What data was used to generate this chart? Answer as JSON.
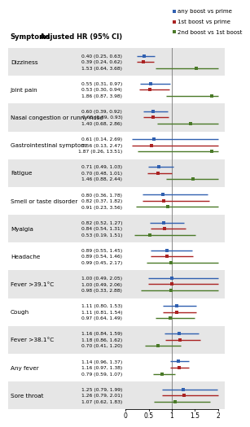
{
  "symptoms": [
    "Dizziness",
    "Joint pain",
    "Nasal congestion or runny nose",
    "Gastrointestinal symptom",
    "Fatigue",
    "Smell or taste disorder",
    "Myalgia",
    "Headache",
    "Fever >39.1°C",
    "Cough",
    "Fever >38.1°C",
    "Any fever",
    "Sore throat"
  ],
  "data": [
    {
      "label": "0.40 (0.25, 0.63)",
      "hr": 0.4,
      "lo": 0.25,
      "hi": 0.63,
      "color": "#3060b0"
    },
    {
      "label": "0.39 (0.24, 0.62)",
      "hr": 0.39,
      "lo": 0.24,
      "hi": 0.62,
      "color": "#aa2222"
    },
    {
      "label": "1.53 (0.64, 3.68)",
      "hr": 1.53,
      "lo": 0.64,
      "hi": 3.68,
      "color": "#4a7a28"
    },
    {
      "label": "0.55 (0.31, 0.97)",
      "hr": 0.55,
      "lo": 0.31,
      "hi": 0.97,
      "color": "#3060b0"
    },
    {
      "label": "0.53 (0.30, 0.94)",
      "hr": 0.53,
      "lo": 0.3,
      "hi": 0.94,
      "color": "#aa2222"
    },
    {
      "label": "1.86 (0.87, 3.98)",
      "hr": 1.86,
      "lo": 0.87,
      "hi": 3.98,
      "color": "#4a7a28"
    },
    {
      "label": "0.60 (0.39, 0.92)",
      "hr": 0.6,
      "lo": 0.39,
      "hi": 0.92,
      "color": "#3060b0"
    },
    {
      "label": "0.60 (0.39, 0.93)",
      "hr": 0.6,
      "lo": 0.39,
      "hi": 0.93,
      "color": "#aa2222"
    },
    {
      "label": "1.40 (0.68, 2.86)",
      "hr": 1.4,
      "lo": 0.68,
      "hi": 2.86,
      "color": "#4a7a28"
    },
    {
      "label": "0.61 (0.14, 2.69)",
      "hr": 0.61,
      "lo": 0.14,
      "hi": 2.69,
      "color": "#3060b0"
    },
    {
      "label": "0.56 (0.13, 2.47)",
      "hr": 0.56,
      "lo": 0.13,
      "hi": 2.47,
      "color": "#aa2222"
    },
    {
      "label": "1.87 (0.26, 13.51)",
      "hr": 1.87,
      "lo": 0.26,
      "hi": 13.51,
      "color": "#4a7a28"
    },
    {
      "label": "0.71 (0.49, 1.03)",
      "hr": 0.71,
      "lo": 0.49,
      "hi": 1.03,
      "color": "#3060b0"
    },
    {
      "label": "0.70 (0.48, 1.01)",
      "hr": 0.7,
      "lo": 0.48,
      "hi": 1.01,
      "color": "#aa2222"
    },
    {
      "label": "1.46 (0.88, 2.44)",
      "hr": 1.46,
      "lo": 0.88,
      "hi": 2.44,
      "color": "#4a7a28"
    },
    {
      "label": "0.80 (0.36, 1.78)",
      "hr": 0.8,
      "lo": 0.36,
      "hi": 1.78,
      "color": "#3060b0"
    },
    {
      "label": "0.82 (0.37, 1.82)",
      "hr": 0.82,
      "lo": 0.37,
      "hi": 1.82,
      "color": "#aa2222"
    },
    {
      "label": "0.91 (0.23, 3.56)",
      "hr": 0.91,
      "lo": 0.23,
      "hi": 3.56,
      "color": "#4a7a28"
    },
    {
      "label": "0.82 (0.52, 1.27)",
      "hr": 0.82,
      "lo": 0.52,
      "hi": 1.27,
      "color": "#3060b0"
    },
    {
      "label": "0.84 (0.54, 1.31)",
      "hr": 0.84,
      "lo": 0.54,
      "hi": 1.31,
      "color": "#aa2222"
    },
    {
      "label": "0.53 (0.19, 1.51)",
      "hr": 0.53,
      "lo": 0.19,
      "hi": 1.51,
      "color": "#4a7a28"
    },
    {
      "label": "0.89 (0.55, 1.45)",
      "hr": 0.89,
      "lo": 0.55,
      "hi": 1.45,
      "color": "#3060b0"
    },
    {
      "label": "0.89 (0.54, 1.46)",
      "hr": 0.89,
      "lo": 0.54,
      "hi": 1.46,
      "color": "#aa2222"
    },
    {
      "label": "0.99 (0.45, 2.17)",
      "hr": 0.99,
      "lo": 0.45,
      "hi": 2.17,
      "color": "#4a7a28"
    },
    {
      "label": "1.00 (0.49, 2.05)",
      "hr": 1.0,
      "lo": 0.49,
      "hi": 2.05,
      "color": "#3060b0"
    },
    {
      "label": "1.00 (0.49, 2.06)",
      "hr": 1.0,
      "lo": 0.49,
      "hi": 2.06,
      "color": "#aa2222"
    },
    {
      "label": "0.98 (0.33, 2.88)",
      "hr": 0.98,
      "lo": 0.33,
      "hi": 2.88,
      "color": "#4a7a28"
    },
    {
      "label": "1.11 (0.80, 1.53)",
      "hr": 1.11,
      "lo": 0.8,
      "hi": 1.53,
      "color": "#3060b0"
    },
    {
      "label": "1.11 (0.81, 1.54)",
      "hr": 1.11,
      "lo": 0.81,
      "hi": 1.54,
      "color": "#aa2222"
    },
    {
      "label": "0.97 (0.64, 1.49)",
      "hr": 0.97,
      "lo": 0.64,
      "hi": 1.49,
      "color": "#4a7a28"
    },
    {
      "label": "1.16 (0.84, 1.59)",
      "hr": 1.16,
      "lo": 0.84,
      "hi": 1.59,
      "color": "#3060b0"
    },
    {
      "label": "1.18 (0.86, 1.62)",
      "hr": 1.18,
      "lo": 0.86,
      "hi": 1.62,
      "color": "#aa2222"
    },
    {
      "label": "0.70 (0.41, 1.20)",
      "hr": 0.7,
      "lo": 0.41,
      "hi": 1.2,
      "color": "#4a7a28"
    },
    {
      "label": "1.14 (0.96, 1.37)",
      "hr": 1.14,
      "lo": 0.96,
      "hi": 1.37,
      "color": "#3060b0"
    },
    {
      "label": "1.16 (0.97, 1.38)",
      "hr": 1.16,
      "lo": 0.97,
      "hi": 1.38,
      "color": "#aa2222"
    },
    {
      "label": "0.79 (0.59, 1.07)",
      "hr": 0.79,
      "lo": 0.59,
      "hi": 1.07,
      "color": "#4a7a28"
    },
    {
      "label": "1.25 (0.79, 1.99)",
      "hr": 1.25,
      "lo": 0.79,
      "hi": 1.99,
      "color": "#3060b0"
    },
    {
      "label": "1.26 (0.79, 2.01)",
      "hr": 1.26,
      "lo": 0.79,
      "hi": 2.01,
      "color": "#aa2222"
    },
    {
      "label": "1.07 (0.62, 1.83)",
      "hr": 1.07,
      "lo": 0.62,
      "hi": 1.83,
      "color": "#4a7a28"
    }
  ],
  "xlim": [
    0,
    2.0
  ],
  "xticks": [
    0,
    0.5,
    1.0,
    1.5,
    2.0
  ],
  "xtick_labels": [
    "0",
    "0.5",
    "1",
    "1.5",
    "2"
  ],
  "col_header_symptoms": "Symptoms",
  "col_header_hr": "Adjusted HR (95% CI)",
  "legend": [
    {
      "label": "any boost vs prime",
      "color": "#3060b0"
    },
    {
      "label": "1st boost vs prime",
      "color": "#aa2222"
    },
    {
      "label": "2nd boost vs 1st boost",
      "color": "#4a7a28"
    }
  ],
  "bg_colors": [
    "#e6e6e6",
    "#ffffff"
  ],
  "fontsize_sym": 5.2,
  "fontsize_header": 6.0,
  "fontsize_data": 4.3,
  "fontsize_legend": 5.0,
  "fontsize_xtick": 5.5,
  "lw": 1.0,
  "ms": 3.0
}
